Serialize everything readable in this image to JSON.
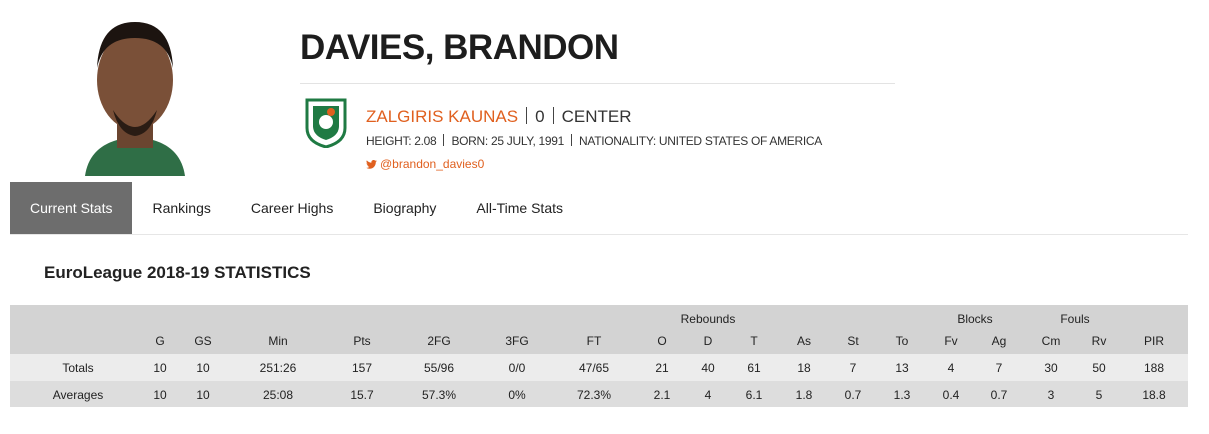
{
  "player": {
    "name": "DAVIES, BRANDON",
    "team": "ZALGIRIS KAUNAS",
    "number": "0",
    "position": "CENTER",
    "details": [
      "HEIGHT: 2.08",
      "BORN: 25 JULY, 1991",
      "NATIONALITY: UNITED STATES OF AMERICA"
    ],
    "twitter": "@brandon_davies0"
  },
  "tabs": [
    "Current Stats",
    "Rankings",
    "Career Highs",
    "Biography",
    "All-Time Stats"
  ],
  "section_title": "EuroLeague 2018-19 STATISTICS",
  "table": {
    "groups": [
      "Rebounds",
      "Blocks",
      "Fouls"
    ],
    "columns": [
      "",
      "G",
      "GS",
      "Min",
      "Pts",
      "2FG",
      "3FG",
      "FT",
      "O",
      "D",
      "T",
      "As",
      "St",
      "To",
      "Fv",
      "Ag",
      "Cm",
      "Rv",
      "PIR"
    ],
    "rows": [
      [
        "Totals",
        10,
        10,
        "251:26",
        157,
        "55/96",
        "0/0",
        "47/65",
        21,
        40,
        61,
        18,
        7,
        13,
        4,
        7,
        30,
        50,
        188
      ],
      [
        "Averages",
        10,
        10,
        "25:08",
        15.7,
        "57.3%",
        "0%",
        "72.3%",
        2.1,
        4,
        6.1,
        1.8,
        0.7,
        1.3,
        0.4,
        0.7,
        3,
        5,
        18.8
      ]
    ]
  }
}
